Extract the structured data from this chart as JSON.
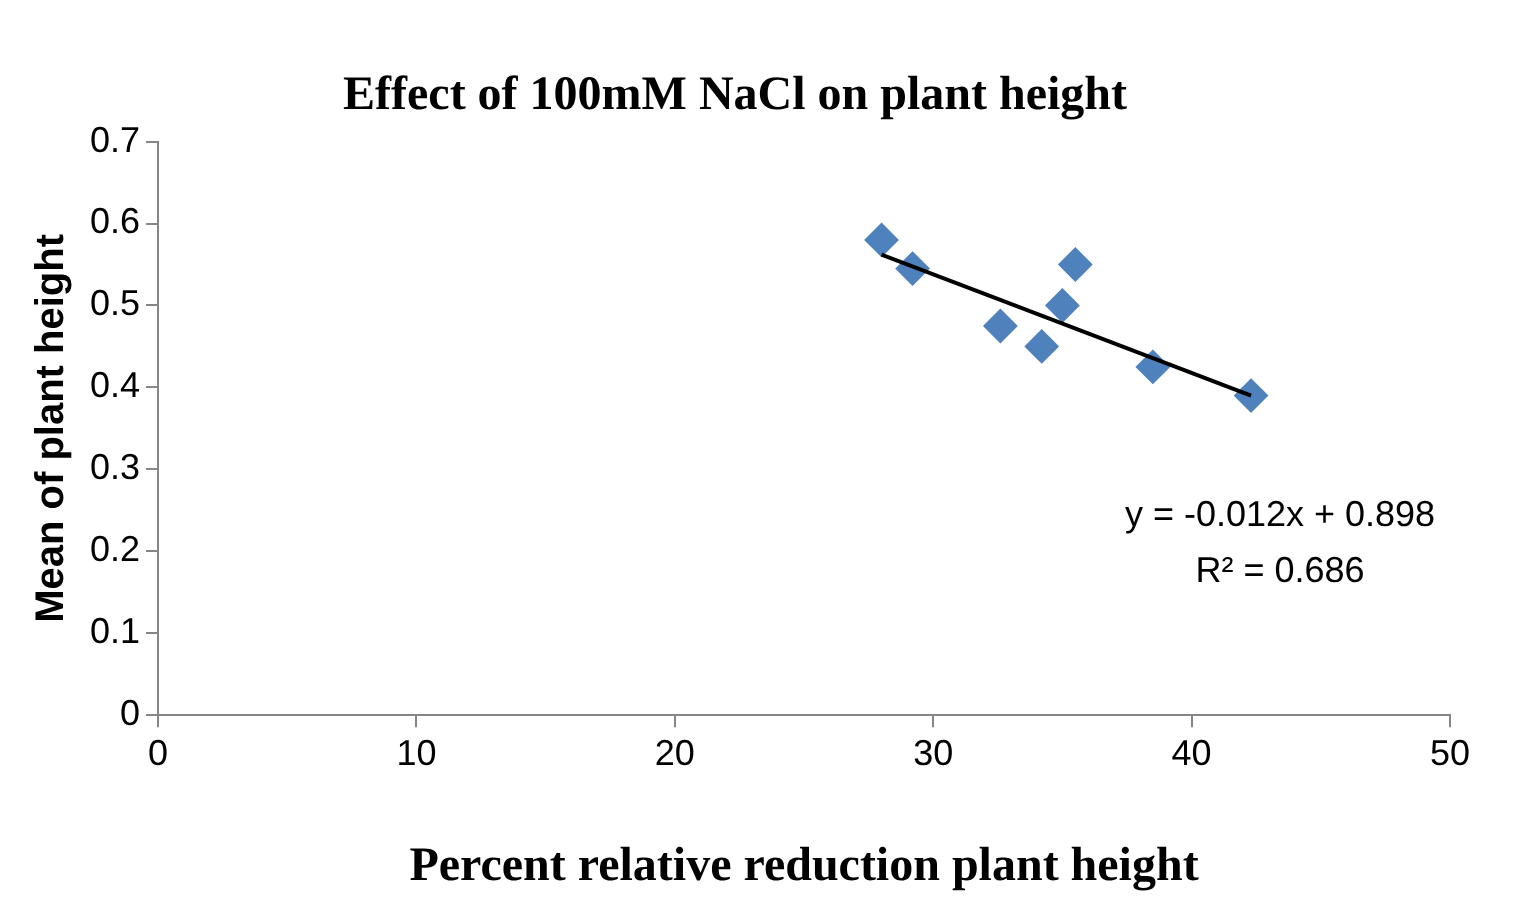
{
  "chart_data": {
    "type": "scatter",
    "title": "Effect of 100mM NaCl on plant height",
    "xlabel": "Percent relative reduction plant height",
    "ylabel": "Mean of plant height",
    "xlim": [
      0,
      50
    ],
    "xticks": [
      0,
      10,
      20,
      30,
      40,
      50
    ],
    "ylim": [
      0,
      0.7
    ],
    "yticks": [
      0,
      0.1,
      0.2,
      0.3,
      0.4,
      0.5,
      0.6,
      0.7
    ],
    "grid": false,
    "legend": false,
    "marker": "diamond",
    "series": [
      {
        "type": "scatter",
        "color": "#4f81bd",
        "x": [
          28.0,
          29.2,
          32.6,
          34.2,
          35.0,
          35.5,
          38.5,
          42.3
        ],
        "values": [
          0.58,
          0.545,
          0.475,
          0.45,
          0.5,
          0.55,
          0.425,
          0.39
        ]
      },
      {
        "type": "line",
        "color": "#000000",
        "marker": "none",
        "x": [
          28.0,
          42.3
        ],
        "values": [
          0.562,
          0.39
        ]
      }
    ],
    "annotations": [
      "y = -0.012x + 0.898",
      "R² = 0.686"
    ]
  }
}
